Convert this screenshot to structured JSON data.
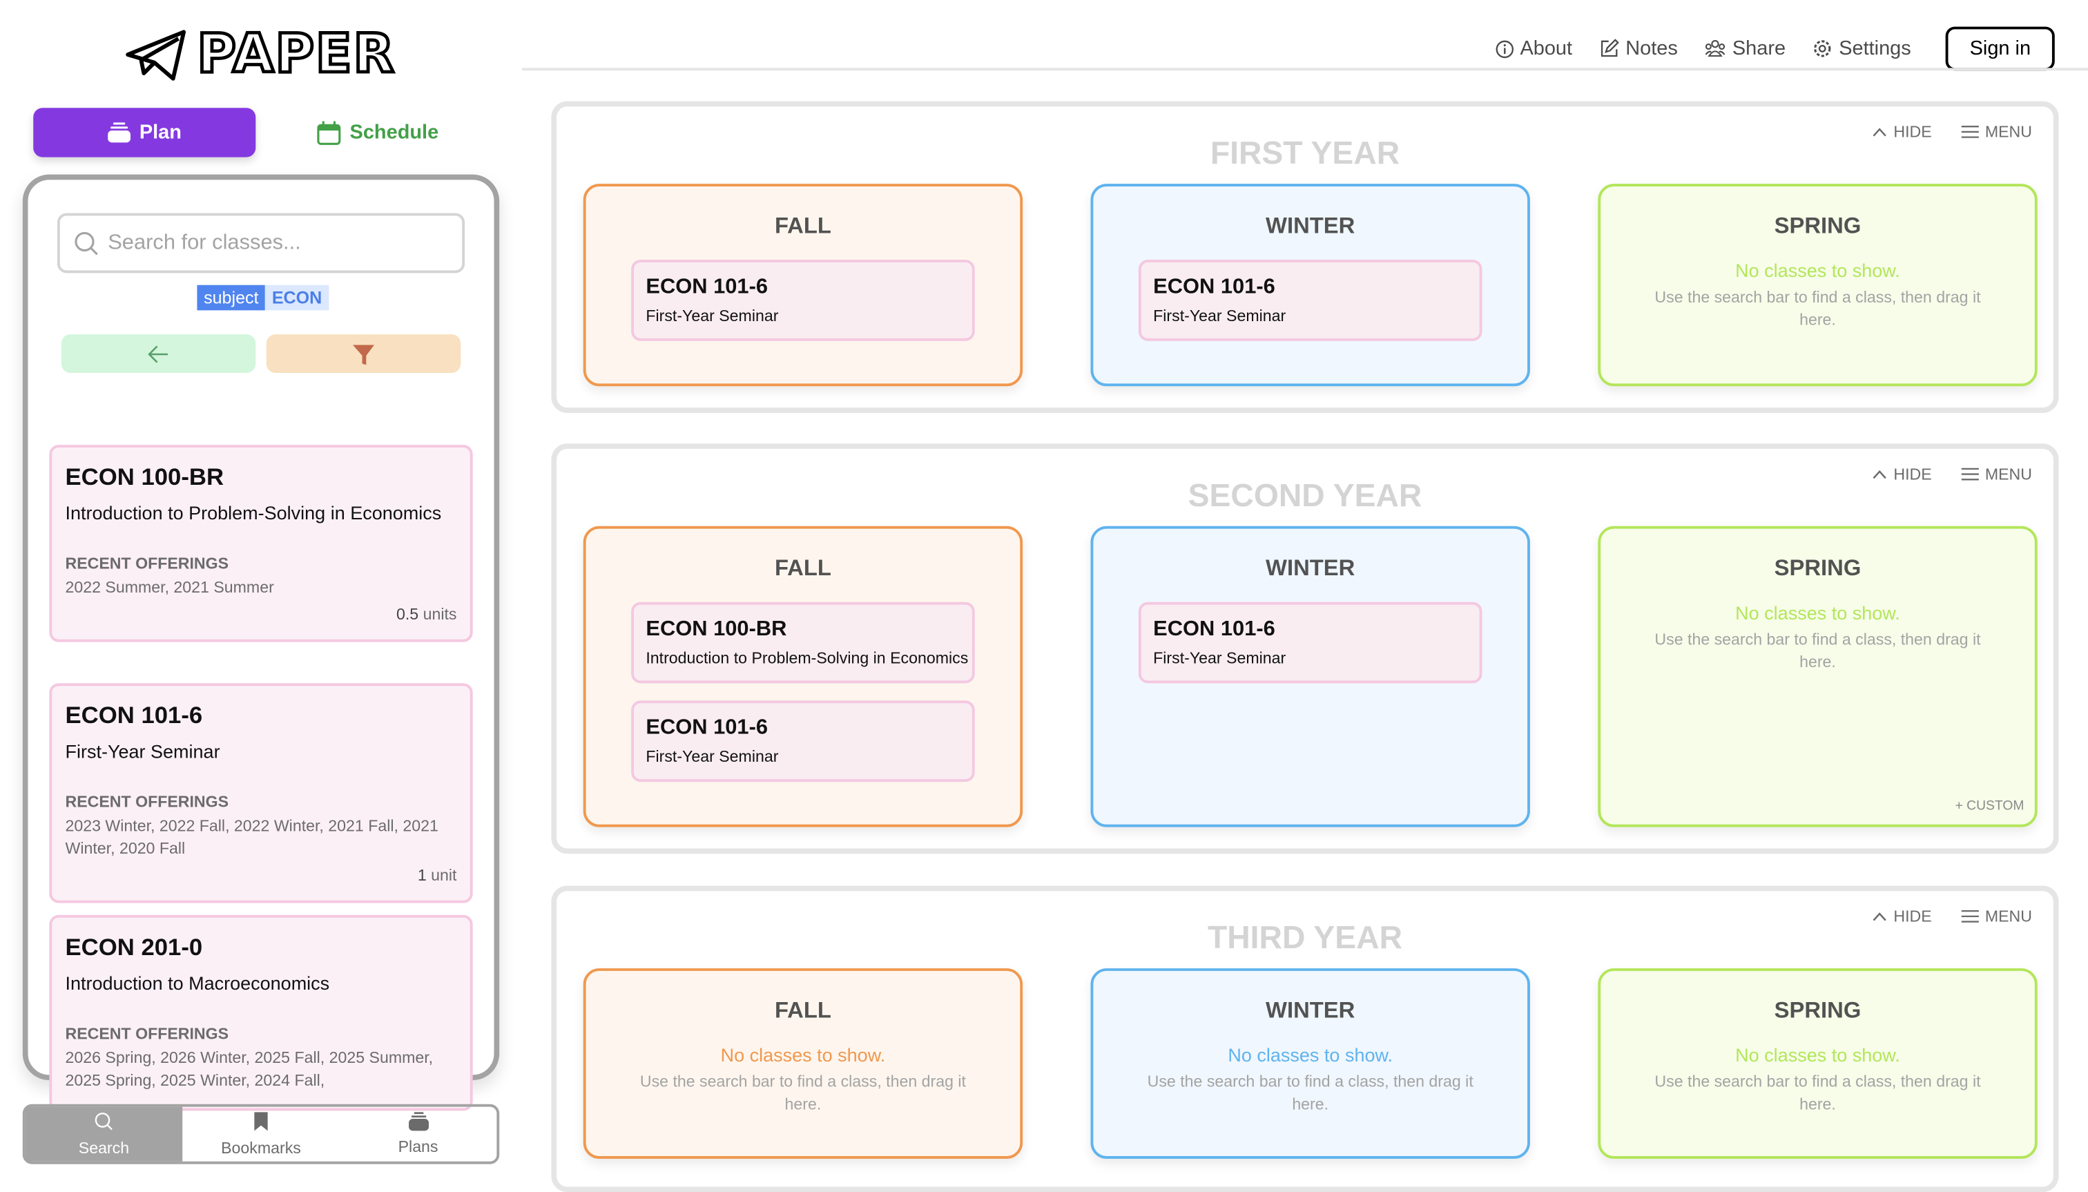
{
  "logo": {
    "text": "PAPER"
  },
  "mode": {
    "plan": "Plan",
    "schedule": "Schedule"
  },
  "search": {
    "placeholder": "Search for classes...",
    "filter_key": "subject",
    "filter_value": "ECON"
  },
  "results": [
    {
      "code": "ECON 100-BR",
      "name": "Introduction to Problem-Solving in Economics",
      "offerings_label": "RECENT OFFERINGS",
      "offerings": "2022 Summer, 2021 Summer",
      "units_num": "0.5",
      "units_label": "units"
    },
    {
      "code": "ECON 101-6",
      "name": "First-Year Seminar",
      "offerings_label": "RECENT OFFERINGS",
      "offerings": "2023 Winter, 2022 Fall, 2022 Winter, 2021 Fall, 2021 Winter, 2020 Fall",
      "units_num": "1",
      "units_label": "unit"
    },
    {
      "code": "ECON 201-0",
      "name": "Introduction to Macroeconomics",
      "offerings_label": "RECENT OFFERINGS",
      "offerings": "2026 Spring, 2026 Winter, 2025 Fall, 2025 Summer, 2025 Spring, 2025 Winter, 2024 Fall,"
    }
  ],
  "bottom_tabs": [
    {
      "label": "Search",
      "icon": "search-icon",
      "active": true
    },
    {
      "label": "Bookmarks",
      "icon": "bookmark-icon"
    },
    {
      "label": "Plans",
      "icon": "stack-icon"
    }
  ],
  "nav": {
    "about": "About",
    "notes": "Notes",
    "share": "Share",
    "settings": "Settings",
    "sign_in": "Sign in"
  },
  "year_controls": {
    "hide": "HIDE",
    "menu": "MENU"
  },
  "empty": {
    "title": "No classes to show.",
    "hint": "Use the search bar to find a class, then drag it here."
  },
  "custom_label": "+ CUSTOM",
  "colors": {
    "fall": "#f0984e",
    "fall_bg": "#fef6ee",
    "winter": "#5fb3ee",
    "winter_bg": "#f0f7fe",
    "spring": "#b3e65a",
    "spring_bg": "#f7fde9",
    "plan": "#8439e0",
    "schedule": "#43a047"
  },
  "years": [
    {
      "title": "FIRST YEAR",
      "quarters": [
        {
          "name": "FALL",
          "classes": [
            {
              "code": "ECON 101-6",
              "name": "First-Year Seminar"
            }
          ]
        },
        {
          "name": "WINTER",
          "classes": [
            {
              "code": "ECON 101-6",
              "name": "First-Year Seminar"
            }
          ]
        },
        {
          "name": "SPRING",
          "classes": []
        }
      ]
    },
    {
      "title": "SECOND YEAR",
      "quarters": [
        {
          "name": "FALL",
          "classes": [
            {
              "code": "ECON 100-BR",
              "name": "Introduction to Problem-Solving in Economics"
            },
            {
              "code": "ECON 101-6",
              "name": "First-Year Seminar"
            }
          ]
        },
        {
          "name": "WINTER",
          "classes": [
            {
              "code": "ECON 101-6",
              "name": "First-Year Seminar"
            }
          ]
        },
        {
          "name": "SPRING",
          "classes": [],
          "custom": true
        }
      ]
    },
    {
      "title": "THIRD YEAR",
      "quarters": [
        {
          "name": "FALL",
          "classes": []
        },
        {
          "name": "WINTER",
          "classes": []
        },
        {
          "name": "SPRING",
          "classes": []
        }
      ]
    }
  ]
}
